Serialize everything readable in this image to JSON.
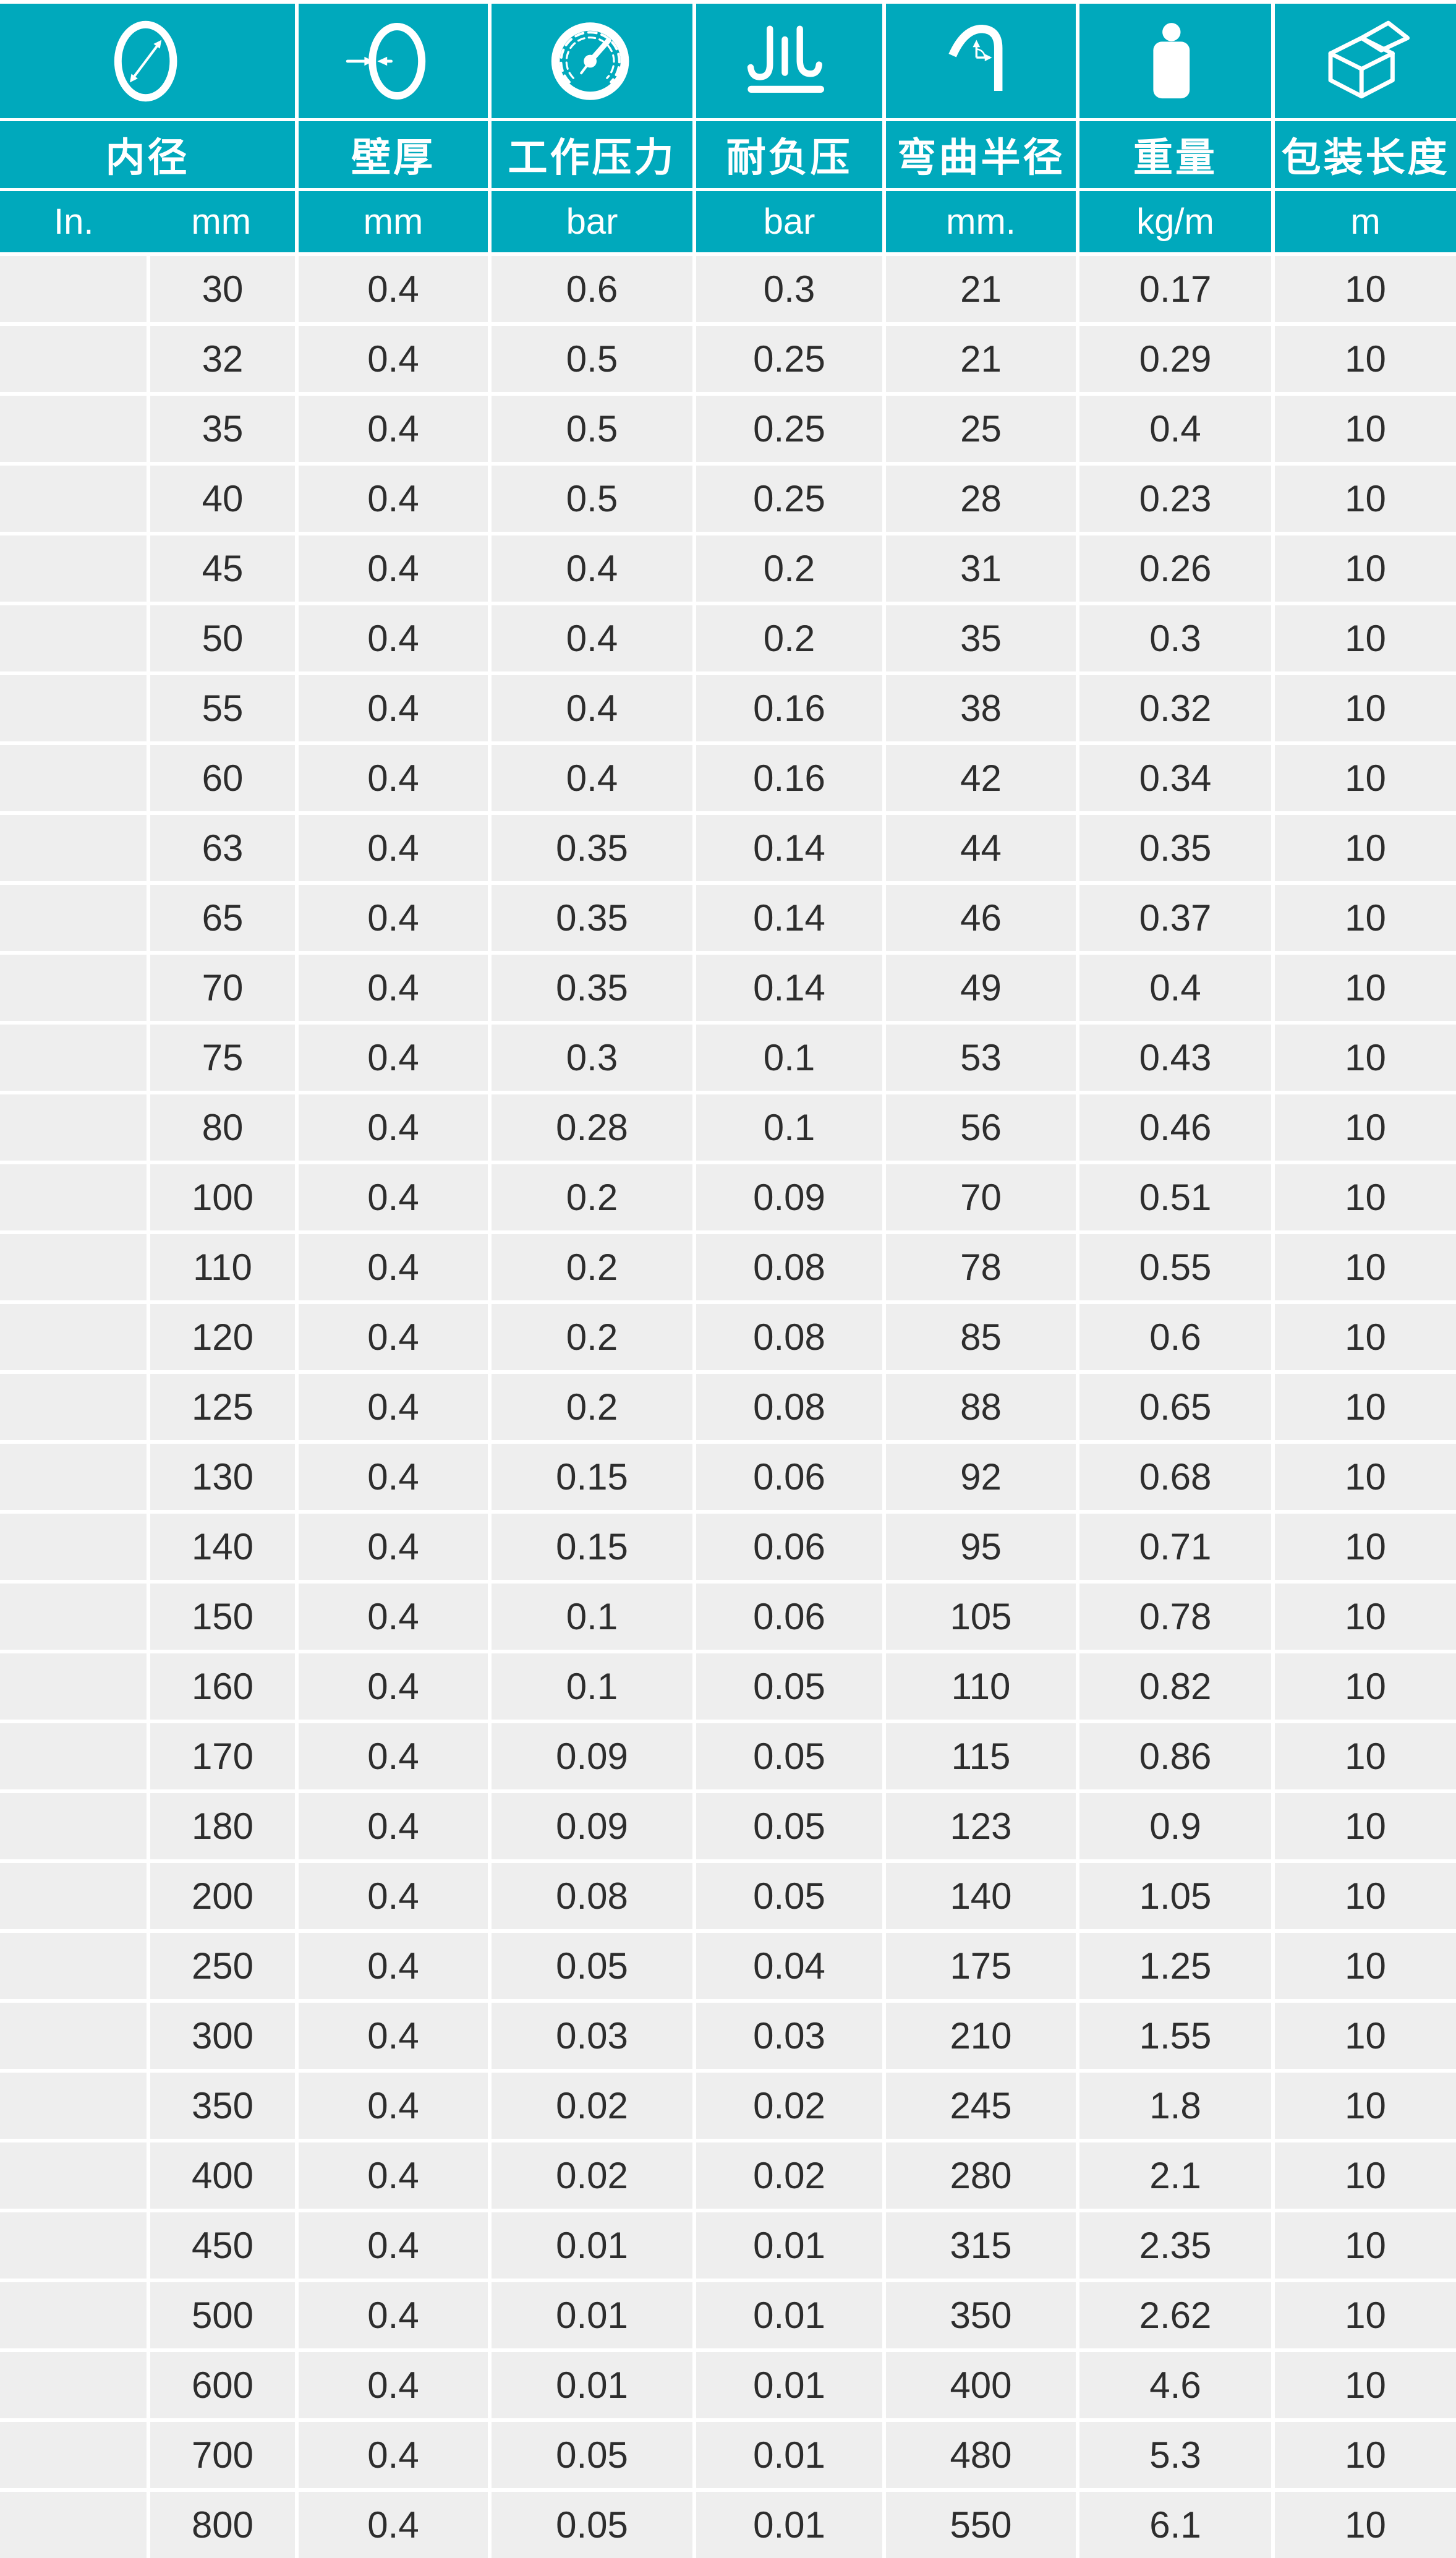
{
  "colors": {
    "teal": "#00a9bc",
    "cell_bg": "#eeeeee",
    "gap": "#ffffff",
    "header_text": "#ffffff",
    "text": "#2d2d2d"
  },
  "columns": [
    {
      "label": "内径",
      "icon": "inner-diameter-icon",
      "unit_left": "In.",
      "unit_right": "mm"
    },
    {
      "label": "壁厚",
      "icon": "wall-thickness-icon",
      "unit": "mm"
    },
    {
      "label": "工作压力",
      "icon": "pressure-gauge-icon",
      "unit": "bar"
    },
    {
      "label": "耐负压",
      "icon": "vacuum-icon",
      "unit": "bar"
    },
    {
      "label": "弯曲半径",
      "icon": "bend-radius-icon",
      "unit": "mm."
    },
    {
      "label": "重量",
      "icon": "weight-icon",
      "unit": "kg/m"
    },
    {
      "label": "包装长度",
      "icon": "packing-box-icon",
      "unit": "m"
    }
  ],
  "rows": [
    [
      "",
      "30",
      "0.4",
      "0.6",
      "0.3",
      "21",
      "0.17",
      "10"
    ],
    [
      "",
      "32",
      "0.4",
      "0.5",
      "0.25",
      "21",
      "0.29",
      "10"
    ],
    [
      "",
      "35",
      "0.4",
      "0.5",
      "0.25",
      "25",
      "0.4",
      "10"
    ],
    [
      "",
      "40",
      "0.4",
      "0.5",
      "0.25",
      "28",
      "0.23",
      "10"
    ],
    [
      "",
      "45",
      "0.4",
      "0.4",
      "0.2",
      "31",
      "0.26",
      "10"
    ],
    [
      "",
      "50",
      "0.4",
      "0.4",
      "0.2",
      "35",
      "0.3",
      "10"
    ],
    [
      "",
      "55",
      "0.4",
      "0.4",
      "0.16",
      "38",
      "0.32",
      "10"
    ],
    [
      "",
      "60",
      "0.4",
      "0.4",
      "0.16",
      "42",
      "0.34",
      "10"
    ],
    [
      "",
      "63",
      "0.4",
      "0.35",
      "0.14",
      "44",
      "0.35",
      "10"
    ],
    [
      "",
      "65",
      "0.4",
      "0.35",
      "0.14",
      "46",
      "0.37",
      "10"
    ],
    [
      "",
      "70",
      "0.4",
      "0.35",
      "0.14",
      "49",
      "0.4",
      "10"
    ],
    [
      "",
      "75",
      "0.4",
      "0.3",
      "0.1",
      "53",
      "0.43",
      "10"
    ],
    [
      "",
      "80",
      "0.4",
      "0.28",
      "0.1",
      "56",
      "0.46",
      "10"
    ],
    [
      "",
      "100",
      "0.4",
      "0.2",
      "0.09",
      "70",
      "0.51",
      "10"
    ],
    [
      "",
      "110",
      "0.4",
      "0.2",
      "0.08",
      "78",
      "0.55",
      "10"
    ],
    [
      "",
      "120",
      "0.4",
      "0.2",
      "0.08",
      "85",
      "0.6",
      "10"
    ],
    [
      "",
      "125",
      "0.4",
      "0.2",
      "0.08",
      "88",
      "0.65",
      "10"
    ],
    [
      "",
      "130",
      "0.4",
      "0.15",
      "0.06",
      "92",
      "0.68",
      "10"
    ],
    [
      "",
      "140",
      "0.4",
      "0.15",
      "0.06",
      "95",
      "0.71",
      "10"
    ],
    [
      "",
      "150",
      "0.4",
      "0.1",
      "0.06",
      "105",
      "0.78",
      "10"
    ],
    [
      "",
      "160",
      "0.4",
      "0.1",
      "0.05",
      "110",
      "0.82",
      "10"
    ],
    [
      "",
      "170",
      "0.4",
      "0.09",
      "0.05",
      "115",
      "0.86",
      "10"
    ],
    [
      "",
      "180",
      "0.4",
      "0.09",
      "0.05",
      "123",
      "0.9",
      "10"
    ],
    [
      "",
      "200",
      "0.4",
      "0.08",
      "0.05",
      "140",
      "1.05",
      "10"
    ],
    [
      "",
      "250",
      "0.4",
      "0.05",
      "0.04",
      "175",
      "1.25",
      "10"
    ],
    [
      "",
      "300",
      "0.4",
      "0.03",
      "0.03",
      "210",
      "1.55",
      "10"
    ],
    [
      "",
      "350",
      "0.4",
      "0.02",
      "0.02",
      "245",
      "1.8",
      "10"
    ],
    [
      "",
      "400",
      "0.4",
      "0.02",
      "0.02",
      "280",
      "2.1",
      "10"
    ],
    [
      "",
      "450",
      "0.4",
      "0.01",
      "0.01",
      "315",
      "2.35",
      "10"
    ],
    [
      "",
      "500",
      "0.4",
      "0.01",
      "0.01",
      "350",
      "2.62",
      "10"
    ],
    [
      "",
      "600",
      "0.4",
      "0.01",
      "0.01",
      "400",
      "4.6",
      "10"
    ],
    [
      "",
      "700",
      "0.4",
      "0.05",
      "0.01",
      "480",
      "5.3",
      "10"
    ],
    [
      "",
      "800",
      "0.4",
      "0.05",
      "0.01",
      "550",
      "6.1",
      "10"
    ]
  ]
}
